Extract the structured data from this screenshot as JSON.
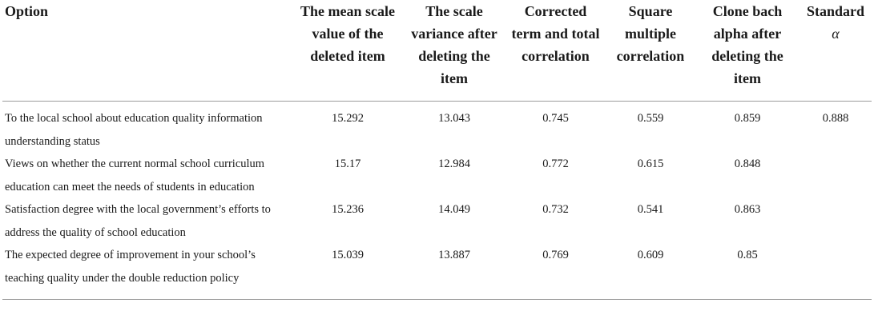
{
  "table": {
    "headers": {
      "option": "Option",
      "mean": "The mean scale value of the deleted item",
      "variance": "The scale variance after deleting the item",
      "corrected": "Corrected term and total correlation",
      "square": "Square multiple correlation",
      "clone": "Clone bach alpha after deleting the item",
      "standard": "Standard",
      "standard_symbol": "α"
    },
    "rows": [
      {
        "option": "To the local school about education quality information understanding status",
        "mean": "15.292",
        "variance": "13.043",
        "corrected": "0.745",
        "square": "0.559",
        "clone": "0.859",
        "standard": "0.888"
      },
      {
        "option": "Views on whether the current normal school curriculum education can meet the needs of students in education",
        "mean": "15.17",
        "variance": "12.984",
        "corrected": "0.772",
        "square": "0.615",
        "clone": "0.848",
        "standard": ""
      },
      {
        "option": "Satisfaction degree with the local government’s efforts to address the quality of school education",
        "mean": "15.236",
        "variance": "14.049",
        "corrected": "0.732",
        "square": "0.541",
        "clone": "0.863",
        "standard": ""
      },
      {
        "option": "The expected degree of improvement in your school’s teaching quality under the double reduction policy",
        "mean": "15.039",
        "variance": "13.887",
        "corrected": "0.769",
        "square": "0.609",
        "clone": "0.85",
        "standard": ""
      }
    ]
  }
}
